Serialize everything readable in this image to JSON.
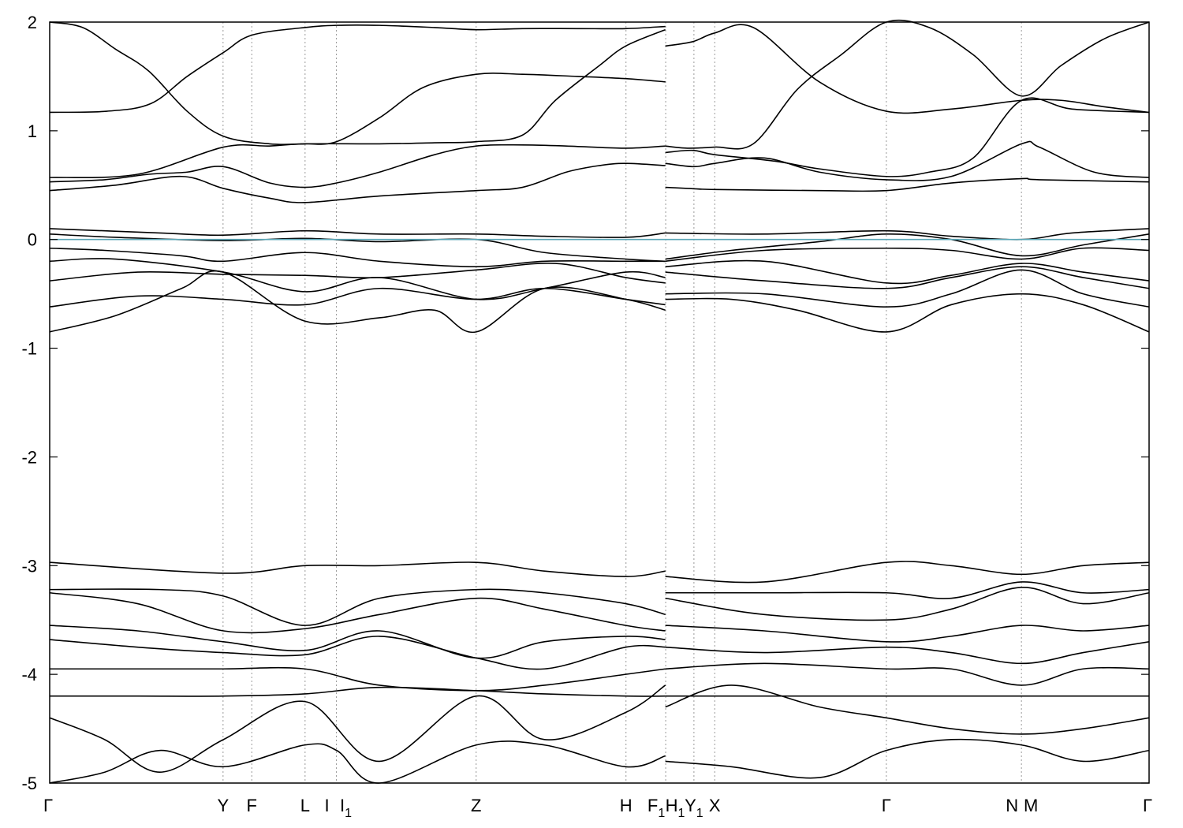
{
  "chart_data": {
    "type": "line",
    "title": "",
    "xlabel": "",
    "ylabel": "",
    "ylim": [
      -5,
      2
    ],
    "yticks": [
      -5,
      -4,
      -3,
      -2,
      -1,
      0,
      1,
      2
    ],
    "xlim": [
      0,
      1
    ],
    "grid": "vertical dotted lines at high-symmetry points",
    "colors": {
      "bands": "#000000",
      "fermi_level": "#5aa6b6",
      "kpath": "#999999"
    },
    "kpoints": [
      {
        "label": "Γ",
        "sub": "",
        "pos": 0.0
      },
      {
        "label": "Y",
        "sub": "",
        "pos": 0.1577
      },
      {
        "label": "F",
        "sub": "",
        "pos": 0.1838
      },
      {
        "label": "L",
        "sub": "",
        "pos": 0.2323
      },
      {
        "label": "I",
        "sub": "",
        "pos": 0.2608
      },
      {
        "label": "I",
        "sub": "1",
        "pos": 0.2608
      },
      {
        "label": "Z",
        "sub": "",
        "pos": 0.3879
      },
      {
        "label": "H",
        "sub": "",
        "pos": 0.5242
      },
      {
        "label": "F",
        "sub": "1",
        "pos": 0.5603
      },
      {
        "label": "H",
        "sub": "1",
        "pos": 0.5603
      },
      {
        "label": "Y",
        "sub": "1",
        "pos": 0.586
      },
      {
        "label": "X",
        "sub": "",
        "pos": 0.6049
      },
      {
        "label": "Γ",
        "sub": "",
        "pos": 0.761
      },
      {
        "label": "N",
        "sub": "",
        "pos": 0.8839
      },
      {
        "label": "M",
        "sub": "",
        "pos": 0.8839
      },
      {
        "label": "Γ",
        "sub": "",
        "pos": 1.0
      }
    ],
    "fermi_level": 0.0,
    "series": [
      {
        "x": [
          0,
          0.052,
          0.092,
          0.125,
          0.158,
          0.184,
          0.232,
          0.261,
          0.3,
          0.35,
          0.388,
          0.43,
          0.48,
          0.524,
          0.56
        ],
        "y": [
          1.17,
          1.18,
          1.25,
          1.5,
          1.72,
          1.88,
          1.95,
          1.97,
          1.97,
          1.95,
          1.93,
          1.94,
          1.94,
          1.94,
          1.96
        ]
      },
      {
        "x": [
          0,
          0.03,
          0.06,
          0.09,
          0.125,
          0.158,
          0.2,
          0.232,
          0.261,
          0.3,
          0.34,
          0.388,
          0.43,
          0.48,
          0.524,
          0.56
        ],
        "y": [
          2.0,
          1.95,
          1.75,
          1.55,
          1.18,
          0.95,
          0.88,
          0.88,
          0.9,
          1.12,
          1.4,
          1.52,
          1.52,
          1.5,
          1.48,
          1.45
        ]
      },
      {
        "x": [
          0,
          0.08,
          0.158,
          0.2,
          0.232,
          0.3,
          0.35,
          0.388,
          0.43,
          0.46,
          0.5,
          0.524,
          0.56
        ],
        "y": [
          0.57,
          0.6,
          0.85,
          0.86,
          0.88,
          0.88,
          0.89,
          0.9,
          0.96,
          1.28,
          1.6,
          1.78,
          1.93
        ]
      },
      {
        "x": [
          0,
          0.05,
          0.09,
          0.125,
          0.158,
          0.2,
          0.232,
          0.261,
          0.3,
          0.35,
          0.388,
          0.43,
          0.47,
          0.524,
          0.56
        ],
        "y": [
          0.53,
          0.55,
          0.6,
          0.62,
          0.67,
          0.52,
          0.48,
          0.52,
          0.62,
          0.78,
          0.86,
          0.87,
          0.86,
          0.84,
          0.86
        ]
      },
      {
        "x": [
          0,
          0.06,
          0.12,
          0.158,
          0.2,
          0.232,
          0.3,
          0.388,
          0.43,
          0.47,
          0.5,
          0.524,
          0.56
        ],
        "y": [
          0.45,
          0.5,
          0.58,
          0.47,
          0.38,
          0.34,
          0.4,
          0.45,
          0.48,
          0.62,
          0.68,
          0.7,
          0.68
        ]
      },
      {
        "x": [
          0.56,
          0.58,
          0.605,
          0.64,
          0.68,
          0.72,
          0.761,
          0.8,
          0.84,
          0.884,
          0.92,
          0.96,
          1.0
        ],
        "y": [
          0.86,
          0.84,
          0.85,
          0.88,
          1.38,
          1.7,
          2.0,
          1.95,
          1.7,
          1.32,
          1.6,
          1.85,
          2.0
        ]
      },
      {
        "x": [
          0.56,
          0.585,
          0.605,
          0.66,
          0.7,
          0.761,
          0.8,
          0.84,
          0.884,
          0.93,
          1.0
        ],
        "y": [
          0.8,
          0.82,
          0.78,
          0.72,
          0.65,
          0.58,
          0.62,
          0.75,
          1.28,
          1.2,
          1.17
        ]
      },
      {
        "x": [
          0.56,
          0.585,
          0.605,
          0.64,
          0.7,
          0.761,
          0.82,
          0.884,
          0.92,
          0.96,
          1.0
        ],
        "y": [
          1.78,
          1.82,
          1.9,
          1.95,
          1.45,
          1.18,
          1.2,
          1.28,
          1.28,
          1.22,
          1.17
        ]
      },
      {
        "x": [
          0.56,
          0.586,
          0.605,
          0.65,
          0.7,
          0.761,
          0.82,
          0.884,
          0.9,
          0.95,
          1.0
        ],
        "y": [
          0.7,
          0.67,
          0.7,
          0.75,
          0.62,
          0.55,
          0.58,
          0.88,
          0.85,
          0.62,
          0.57
        ]
      },
      {
        "x": [
          0.56,
          0.58,
          0.605,
          0.7,
          0.761,
          0.82,
          0.884,
          0.9,
          1.0
        ],
        "y": [
          0.48,
          0.47,
          0.46,
          0.45,
          0.45,
          0.52,
          0.56,
          0.55,
          0.53
        ]
      },
      {
        "x": [
          0,
          0.1,
          0.158,
          0.232,
          0.3,
          0.388,
          0.45,
          0.524,
          0.56
        ],
        "y": [
          0.1,
          0.06,
          0.04,
          0.08,
          0.05,
          0.05,
          0.03,
          0.02,
          0.06
        ]
      },
      {
        "x": [
          0.56,
          0.65,
          0.761,
          0.82,
          0.884,
          0.93,
          1.0
        ],
        "y": [
          0.06,
          0.05,
          0.08,
          0.03,
          0.0,
          0.06,
          0.1
        ]
      },
      {
        "x": [
          0,
          0.06,
          0.158,
          0.232,
          0.3,
          0.388,
          0.45,
          0.524,
          0.56
        ],
        "y": [
          0.05,
          0.02,
          -0.01,
          0.01,
          -0.02,
          0.0,
          -0.12,
          -0.18,
          -0.2
        ]
      },
      {
        "x": [
          0.56,
          0.62,
          0.7,
          0.761,
          0.82,
          0.884,
          0.94,
          1.0
        ],
        "y": [
          -0.18,
          -0.1,
          -0.02,
          0.05,
          0.0,
          -0.15,
          -0.05,
          0.05
        ]
      },
      {
        "x": [
          0,
          0.05,
          0.12,
          0.158,
          0.232,
          0.3,
          0.388,
          0.45,
          0.524,
          0.56
        ],
        "y": [
          -0.08,
          -0.1,
          -0.15,
          -0.2,
          -0.12,
          -0.2,
          -0.25,
          -0.2,
          -0.2,
          -0.2
        ]
      },
      {
        "x": [
          0.56,
          0.65,
          0.761,
          0.82,
          0.884,
          0.94,
          1.0
        ],
        "y": [
          -0.2,
          -0.1,
          -0.08,
          -0.1,
          -0.18,
          -0.08,
          -0.1
        ]
      },
      {
        "x": [
          0,
          0.06,
          0.158,
          0.232,
          0.3,
          0.388,
          0.45,
          0.524,
          0.56
        ],
        "y": [
          -0.2,
          -0.18,
          -0.3,
          -0.48,
          -0.35,
          -0.55,
          -0.45,
          -0.3,
          -0.35
        ]
      },
      {
        "x": [
          0.56,
          0.65,
          0.761,
          0.82,
          0.884,
          0.94,
          1.0
        ],
        "y": [
          -0.3,
          -0.38,
          -0.45,
          -0.35,
          -0.25,
          -0.35,
          -0.45
        ]
      },
      {
        "x": [
          0,
          0.08,
          0.158,
          0.232,
          0.3,
          0.388,
          0.46,
          0.524,
          0.56
        ],
        "y": [
          -0.38,
          -0.3,
          -0.32,
          -0.33,
          -0.35,
          -0.28,
          -0.22,
          -0.35,
          -0.4
        ]
      },
      {
        "x": [
          0.56,
          0.65,
          0.761,
          0.82,
          0.884,
          0.94,
          1.0
        ],
        "y": [
          -0.25,
          -0.2,
          -0.4,
          -0.33,
          -0.22,
          -0.3,
          -0.38
        ]
      },
      {
        "x": [
          0,
          0.08,
          0.158,
          0.232,
          0.3,
          0.388,
          0.45,
          0.524,
          0.56
        ],
        "y": [
          -0.62,
          -0.52,
          -0.55,
          -0.6,
          -0.45,
          -0.55,
          -0.45,
          -0.55,
          -0.6
        ]
      },
      {
        "x": [
          0.56,
          0.65,
          0.761,
          0.82,
          0.884,
          0.94,
          1.0
        ],
        "y": [
          -0.5,
          -0.5,
          -0.62,
          -0.5,
          -0.28,
          -0.5,
          -0.62
        ]
      },
      {
        "x": [
          0,
          0.06,
          0.12,
          0.158,
          0.232,
          0.3,
          0.35,
          0.388,
          0.45,
          0.524,
          0.56
        ],
        "y": [
          -0.85,
          -0.7,
          -0.45,
          -0.3,
          -0.75,
          -0.72,
          -0.65,
          -0.85,
          -0.45,
          -0.55,
          -0.65
        ]
      },
      {
        "x": [
          0.56,
          0.62,
          0.68,
          0.761,
          0.82,
          0.884,
          0.94,
          1.0
        ],
        "y": [
          -0.55,
          -0.55,
          -0.65,
          -0.85,
          -0.6,
          -0.5,
          -0.6,
          -0.85
        ]
      },
      {
        "x": [
          0,
          0.158,
          0.232,
          0.3,
          0.388,
          0.45,
          0.524,
          0.56
        ],
        "y": [
          -2.97,
          -3.07,
          -3.0,
          -3.0,
          -2.97,
          -3.05,
          -3.1,
          -3.05
        ]
      },
      {
        "x": [
          0.56,
          0.65,
          0.761,
          0.82,
          0.884,
          0.94,
          1.0
        ],
        "y": [
          -3.1,
          -3.15,
          -2.97,
          -3.0,
          -3.08,
          -3.0,
          -2.97
        ]
      },
      {
        "x": [
          0,
          0.1,
          0.158,
          0.232,
          0.3,
          0.388,
          0.45,
          0.524,
          0.56
        ],
        "y": [
          -3.22,
          -3.22,
          -3.28,
          -3.55,
          -3.3,
          -3.22,
          -3.25,
          -3.35,
          -3.45
        ]
      },
      {
        "x": [
          0.56,
          0.65,
          0.761,
          0.82,
          0.884,
          0.94,
          1.0
        ],
        "y": [
          -3.25,
          -3.25,
          -3.25,
          -3.3,
          -3.15,
          -3.25,
          -3.22
        ]
      },
      {
        "x": [
          0,
          0.08,
          0.158,
          0.232,
          0.3,
          0.388,
          0.45,
          0.524,
          0.56
        ],
        "y": [
          -3.25,
          -3.35,
          -3.6,
          -3.58,
          -3.45,
          -3.3,
          -3.4,
          -3.55,
          -3.6
        ]
      },
      {
        "x": [
          0.56,
          0.65,
          0.761,
          0.82,
          0.884,
          0.94,
          1.0
        ],
        "y": [
          -3.3,
          -3.45,
          -3.5,
          -3.4,
          -3.2,
          -3.35,
          -3.25
        ]
      },
      {
        "x": [
          0,
          0.08,
          0.158,
          0.232,
          0.3,
          0.388,
          0.45,
          0.524,
          0.56
        ],
        "y": [
          -3.55,
          -3.6,
          -3.7,
          -3.78,
          -3.6,
          -3.85,
          -3.7,
          -3.65,
          -3.68
        ]
      },
      {
        "x": [
          0.56,
          0.65,
          0.761,
          0.82,
          0.884,
          0.94,
          1.0
        ],
        "y": [
          -3.55,
          -3.6,
          -3.7,
          -3.65,
          -3.55,
          -3.6,
          -3.55
        ]
      },
      {
        "x": [
          0,
          0.08,
          0.158,
          0.232,
          0.3,
          0.388,
          0.45,
          0.524,
          0.56
        ],
        "y": [
          -3.68,
          -3.75,
          -3.8,
          -3.82,
          -3.65,
          -3.85,
          -3.95,
          -3.75,
          -3.75
        ]
      },
      {
        "x": [
          0.56,
          0.65,
          0.761,
          0.82,
          0.884,
          0.94,
          1.0
        ],
        "y": [
          -3.75,
          -3.8,
          -3.75,
          -3.8,
          -3.9,
          -3.8,
          -3.7
        ]
      },
      {
        "x": [
          0,
          0.08,
          0.158,
          0.232,
          0.3,
          0.388,
          0.45,
          0.524,
          0.56
        ],
        "y": [
          -3.95,
          -3.95,
          -3.95,
          -3.95,
          -4.1,
          -4.15,
          -4.1,
          -4.0,
          -3.95
        ]
      },
      {
        "x": [
          0.56,
          0.65,
          0.761,
          0.82,
          0.884,
          0.94,
          1.0
        ],
        "y": [
          -3.95,
          -3.9,
          -3.95,
          -3.95,
          -4.1,
          -3.95,
          -3.95
        ]
      },
      {
        "x": [
          0,
          0.08,
          0.158,
          0.232,
          0.3,
          0.388,
          0.45,
          0.524,
          0.56
        ],
        "y": [
          -4.2,
          -4.2,
          -4.2,
          -4.18,
          -4.12,
          -4.15,
          -4.18,
          -4.2,
          -4.2
        ]
      },
      {
        "x": [
          0.56,
          0.65,
          0.761,
          0.82,
          0.884,
          0.94,
          1.0
        ],
        "y": [
          -4.2,
          -4.2,
          -4.2,
          -4.2,
          -4.2,
          -4.2,
          -4.2
        ]
      },
      {
        "x": [
          0,
          0.05,
          0.1,
          0.158,
          0.232,
          0.3,
          0.388,
          0.45,
          0.524,
          0.56
        ],
        "y": [
          -4.4,
          -4.6,
          -4.9,
          -4.6,
          -4.25,
          -4.8,
          -4.2,
          -4.6,
          -4.35,
          -4.1
        ]
      },
      {
        "x": [
          0.56,
          0.62,
          0.7,
          0.761,
          0.82,
          0.884,
          0.94,
          1.0
        ],
        "y": [
          -4.3,
          -4.1,
          -4.3,
          -4.4,
          -4.5,
          -4.55,
          -4.5,
          -4.4
        ]
      },
      {
        "x": [
          0,
          0.05,
          0.1,
          0.158,
          0.232,
          0.261,
          0.3,
          0.388,
          0.45,
          0.524,
          0.56
        ],
        "y": [
          -5.0,
          -4.9,
          -4.7,
          -4.85,
          -4.65,
          -4.7,
          -5.0,
          -4.65,
          -4.65,
          -4.85,
          -4.75
        ]
      },
      {
        "x": [
          0.56,
          0.62,
          0.7,
          0.761,
          0.82,
          0.884,
          0.94,
          1.0
        ],
        "y": [
          -4.8,
          -4.85,
          -4.95,
          -4.7,
          -4.6,
          -4.65,
          -4.8,
          -4.7
        ]
      }
    ]
  }
}
